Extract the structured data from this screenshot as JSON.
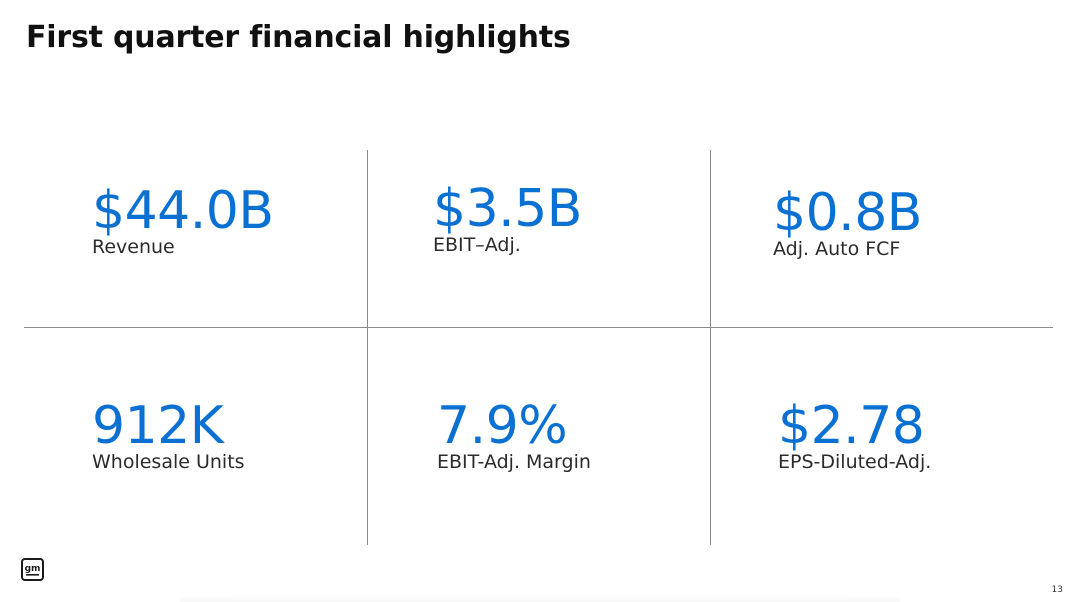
{
  "title": "First quarter financial highlights",
  "accent_color": "#0a71d3",
  "metrics": [
    {
      "value": "$44.0B",
      "label": "Revenue"
    },
    {
      "value": "$3.5B",
      "label": "EBIT–Adj."
    },
    {
      "value": "$0.8B",
      "label": "Adj. Auto FCF"
    },
    {
      "value": "912K",
      "label": "Wholesale Units"
    },
    {
      "value": "7.9%",
      "label": "EBIT-Adj. Margin"
    },
    {
      "value": "$2.78",
      "label": "EPS-Diluted-Adj."
    }
  ],
  "logo": {
    "icon": "gm-logo-icon",
    "text": "gm"
  },
  "page_number": "13"
}
